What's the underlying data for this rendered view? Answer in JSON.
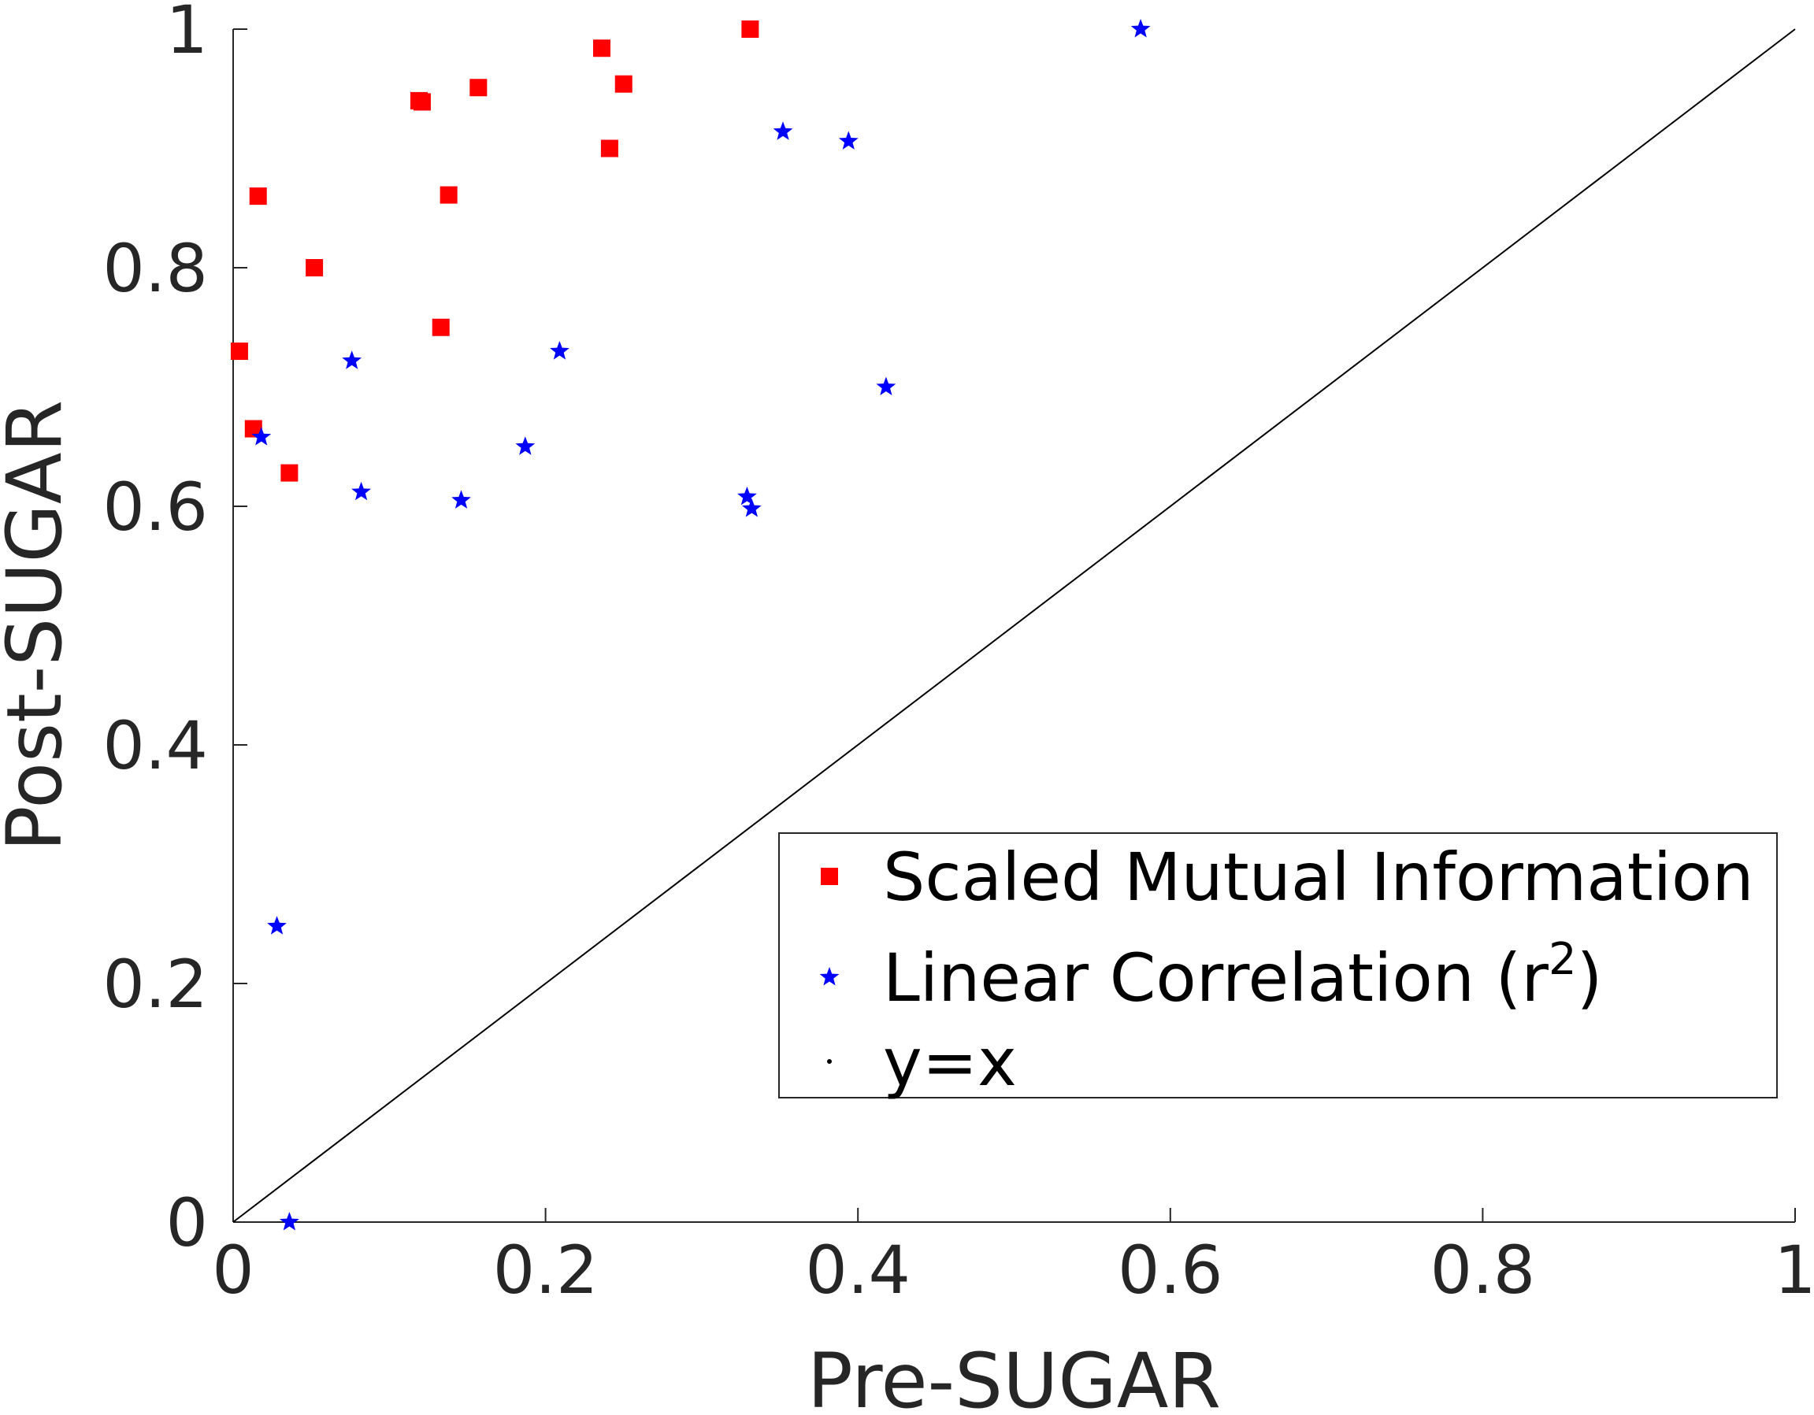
{
  "chart_data": {
    "type": "scatter",
    "title": "",
    "xlabel": "Pre-SUGAR",
    "ylabel": "Post-SUGAR",
    "xlim": [
      0,
      1
    ],
    "ylim": [
      0,
      1
    ],
    "xticks": [
      0,
      0.2,
      0.4,
      0.6,
      0.8,
      1
    ],
    "yticks": [
      0,
      0.2,
      0.4,
      0.6,
      0.8,
      1
    ],
    "xtick_labels": [
      "0",
      "0.2",
      "0.4",
      "0.6",
      "0.8",
      "1"
    ],
    "ytick_labels": [
      "0",
      "0.2",
      "0.4",
      "0.6",
      "0.8",
      "1"
    ],
    "grid": false,
    "legend_position": "lower-right",
    "series": [
      {
        "name": "Scaled Mutual Information",
        "marker": "square",
        "color": "#ff0000",
        "points": [
          [
            0.004,
            0.73
          ],
          [
            0.013,
            0.665
          ],
          [
            0.016,
            0.86
          ],
          [
            0.036,
            0.628
          ],
          [
            0.052,
            0.8
          ],
          [
            0.119,
            0.94
          ],
          [
            0.121,
            0.939
          ],
          [
            0.133,
            0.75
          ],
          [
            0.138,
            0.861
          ],
          [
            0.157,
            0.951
          ],
          [
            0.236,
            0.984
          ],
          [
            0.241,
            0.9
          ],
          [
            0.25,
            0.954
          ],
          [
            0.331,
            1.0
          ]
        ]
      },
      {
        "name": "Linear Correlation (r",
        "name_superscript": "2",
        "name_suffix": ")",
        "marker": "star",
        "color": "#0000ff",
        "points": [
          [
            0.018,
            0.658
          ],
          [
            0.028,
            0.248
          ],
          [
            0.036,
            0.0
          ],
          [
            0.076,
            0.722
          ],
          [
            0.082,
            0.612
          ],
          [
            0.146,
            0.605
          ],
          [
            0.187,
            0.65
          ],
          [
            0.209,
            0.73
          ],
          [
            0.329,
            0.608
          ],
          [
            0.332,
            0.598
          ],
          [
            0.352,
            0.914
          ],
          [
            0.394,
            0.906
          ],
          [
            0.418,
            0.7
          ],
          [
            0.581,
            1.0
          ]
        ]
      },
      {
        "name": "y=x",
        "marker": "line",
        "color": "#000000",
        "points": [
          [
            0,
            0
          ],
          [
            1,
            1
          ]
        ]
      }
    ]
  }
}
